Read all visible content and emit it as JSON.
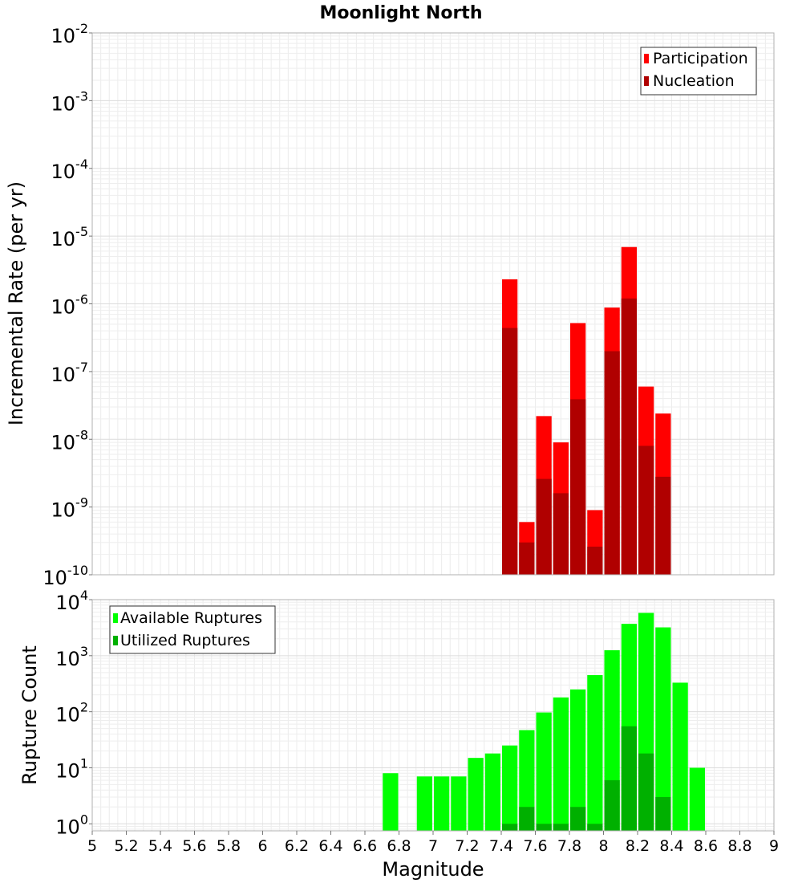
{
  "title": "Moonlight North",
  "chart_data": [
    {
      "type": "bar",
      "ylabel": "Incremental Rate (per yr)",
      "yscale": "log",
      "ylim": [
        1e-10,
        0.01
      ],
      "xlim": [
        5,
        9
      ],
      "bin_width": 0.1,
      "grid": true,
      "legend_position": "top-right",
      "series": [
        {
          "name": "Participation",
          "color": "#ff0000",
          "x": [
            7.45,
            7.55,
            7.65,
            7.75,
            7.85,
            7.95,
            8.05,
            8.15,
            8.25,
            8.35
          ],
          "values": [
            2.3e-06,
            6e-10,
            2.2e-08,
            9e-09,
            5.2e-07,
            9e-10,
            8.8e-07,
            6.9e-06,
            6e-08,
            2.4e-08
          ]
        },
        {
          "name": "Nucleation",
          "color": "#b00000",
          "x": [
            7.45,
            7.55,
            7.65,
            7.75,
            7.85,
            7.95,
            8.05,
            8.15,
            8.25,
            8.35
          ],
          "values": [
            4.4e-07,
            3e-10,
            2.6e-09,
            1.6e-09,
            3.9e-08,
            2.6e-10,
            2e-07,
            1.2e-06,
            8e-09,
            2.8e-09
          ]
        }
      ]
    },
    {
      "type": "bar",
      "xlabel": "Magnitude",
      "ylabel": "Rupture Count",
      "yscale": "log",
      "ylim": [
        0.75,
        10000
      ],
      "xlim": [
        5,
        9
      ],
      "bin_width": 0.1,
      "grid": true,
      "legend_position": "top-left",
      "xticks": [
        "5",
        "5.2",
        "5.4",
        "5.6",
        "5.8",
        "6",
        "6.2",
        "6.4",
        "6.6",
        "6.8",
        "7",
        "7.2",
        "7.4",
        "7.6",
        "7.8",
        "8",
        "8.2",
        "8.4",
        "8.6",
        "8.8",
        "9"
      ],
      "series": [
        {
          "name": "Available Ruptures",
          "color": "#00ff00",
          "x": [
            6.75,
            6.95,
            7.05,
            7.15,
            7.25,
            7.35,
            7.45,
            7.55,
            7.65,
            7.75,
            7.85,
            7.95,
            8.05,
            8.15,
            8.25,
            8.35,
            8.45,
            8.55
          ],
          "values": [
            8,
            7,
            7,
            7,
            15,
            18,
            25,
            47,
            97,
            180,
            250,
            450,
            1250,
            3700,
            5800,
            3200,
            330,
            10
          ]
        },
        {
          "name": "Utilized Ruptures",
          "color": "#00b000",
          "x": [
            7.45,
            7.55,
            7.65,
            7.75,
            7.85,
            7.95,
            8.05,
            8.15,
            8.25,
            8.35
          ],
          "values": [
            1,
            2,
            1,
            1,
            2,
            1,
            6,
            55,
            18,
            3
          ]
        }
      ]
    }
  ]
}
